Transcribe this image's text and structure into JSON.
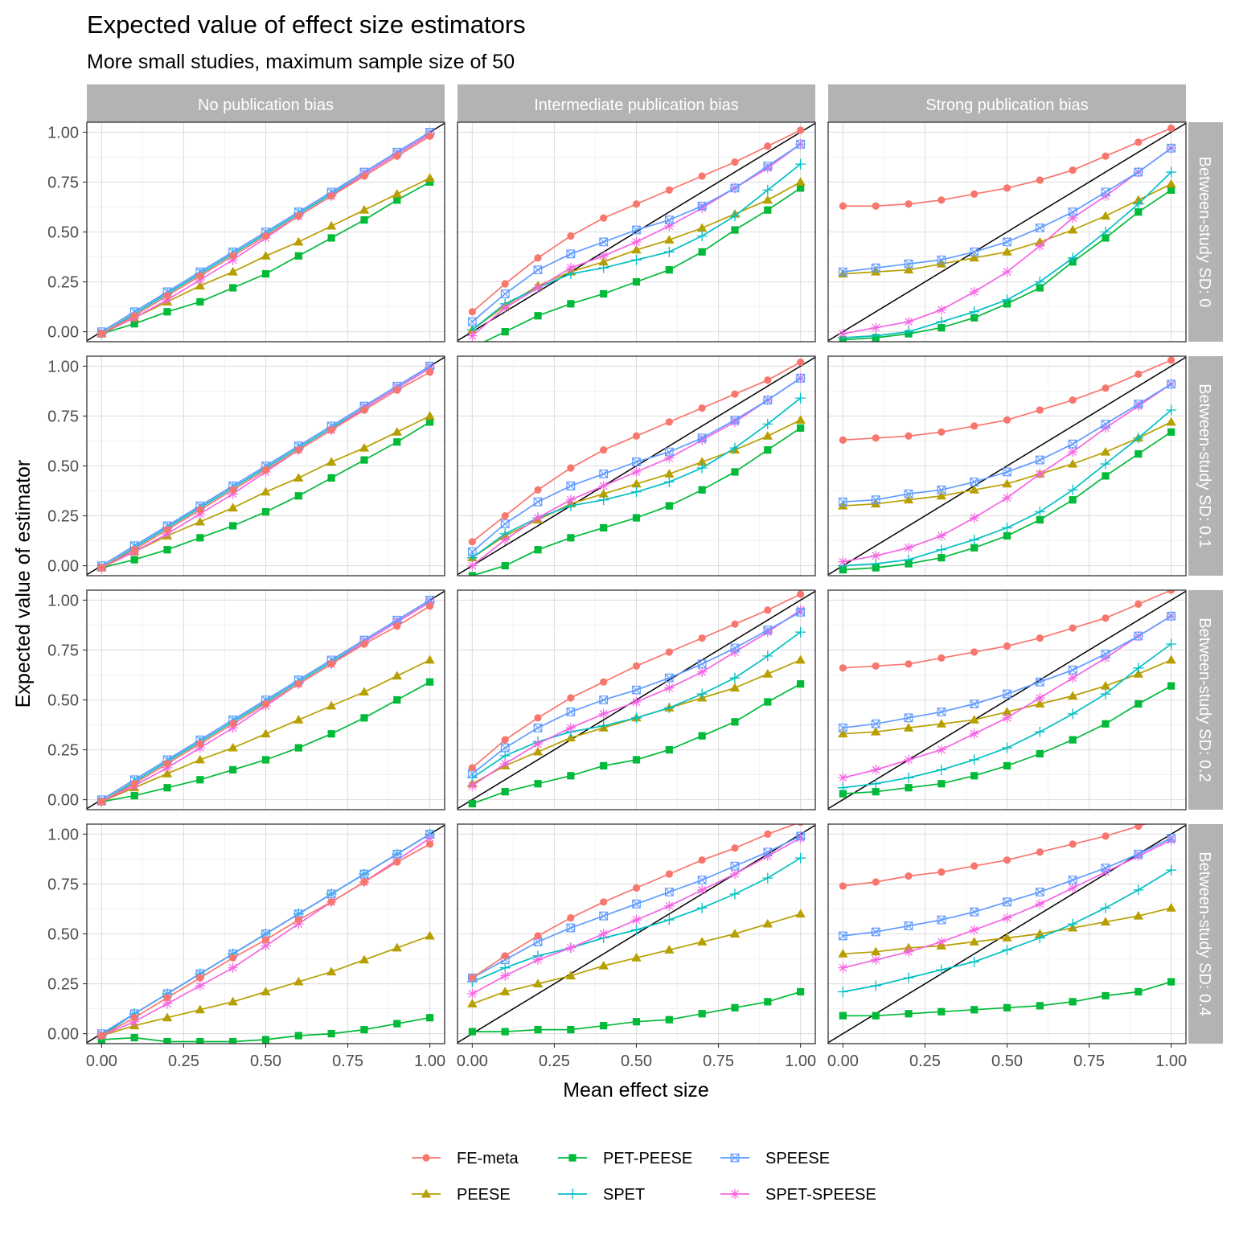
{
  "title": "Expected value of effect size estimators",
  "subtitle": "More small studies, maximum sample size of 50",
  "x_axis_title": "Mean effect size",
  "y_axis_title": "Expected value of estimator",
  "colors": {
    "FE-meta": "#F8766D",
    "PEESE": "#B79F00",
    "PET-PEESE": "#00BA38",
    "SPET": "#00BFC4",
    "SPEESE": "#619CFF",
    "SPET-SPEESE": "#F564E3",
    "strip_bg": "#B3B3B3",
    "reference_line": "#000000"
  },
  "chart_data": {
    "type": "line",
    "facet_columns": [
      "No publication bias",
      "Intermediate publication bias",
      "Strong publication bias"
    ],
    "facet_rows": [
      "Between-study SD: 0",
      "Between-study SD: 0.1",
      "Between-study SD: 0.2",
      "Between-study SD: 0.4"
    ],
    "x": [
      0,
      0.1,
      0.2,
      0.3,
      0.4,
      0.5,
      0.6,
      0.7,
      0.8,
      0.9,
      1.0
    ],
    "x_ticks": [
      "0.00",
      "0.25",
      "0.50",
      "0.75",
      "1.00"
    ],
    "x_tick_values": [
      0,
      0.25,
      0.5,
      0.75,
      1.0
    ],
    "xlim": [
      -0.045,
      1.045
    ],
    "ylim": [
      -0.05,
      1.05
    ],
    "y_ticks": [
      "0.00",
      "0.25",
      "0.50",
      "0.75",
      "1.00"
    ],
    "y_tick_values": [
      0,
      0.25,
      0.5,
      0.75,
      1.0
    ],
    "reference_line": "y = x",
    "grid": true,
    "legend_position": "bottom",
    "legend": [
      {
        "name": "FE-meta",
        "marker": "circle"
      },
      {
        "name": "PET-PEESE",
        "marker": "square"
      },
      {
        "name": "SPEESE",
        "marker": "square-cross"
      },
      {
        "name": "PEESE",
        "marker": "triangle"
      },
      {
        "name": "SPET",
        "marker": "plus"
      },
      {
        "name": "SPET-SPEESE",
        "marker": "asterisk"
      }
    ],
    "panels": [
      {
        "row": 0,
        "col": 0,
        "series": {
          "FE-meta": [
            -0.01,
            0.08,
            0.18,
            0.28,
            0.38,
            0.48,
            0.58,
            0.68,
            0.78,
            0.88,
            0.98
          ],
          "PEESE": [
            -0.01,
            0.07,
            0.15,
            0.23,
            0.3,
            0.38,
            0.45,
            0.53,
            0.61,
            0.69,
            0.77
          ],
          "PET-PEESE": [
            -0.01,
            0.04,
            0.1,
            0.15,
            0.22,
            0.29,
            0.38,
            0.47,
            0.56,
            0.66,
            0.75
          ],
          "SPET": [
            -0.01,
            0.09,
            0.19,
            0.29,
            0.39,
            0.49,
            0.59,
            0.69,
            0.79,
            0.89,
            0.99
          ],
          "SPEESE": [
            0.0,
            0.1,
            0.2,
            0.3,
            0.4,
            0.5,
            0.6,
            0.7,
            0.8,
            0.9,
            1.0
          ],
          "SPET-SPEESE": [
            -0.01,
            0.07,
            0.16,
            0.26,
            0.36,
            0.47,
            0.58,
            0.68,
            0.79,
            0.89,
            0.99
          ]
        }
      },
      {
        "row": 0,
        "col": 1,
        "series": {
          "FE-meta": [
            0.1,
            0.24,
            0.37,
            0.48,
            0.57,
            0.64,
            0.71,
            0.78,
            0.85,
            0.93,
            1.01
          ],
          "PEESE": [
            0.01,
            0.13,
            0.23,
            0.3,
            0.35,
            0.41,
            0.46,
            0.52,
            0.59,
            0.66,
            0.75
          ],
          "PET-PEESE": [
            -0.08,
            0.0,
            0.08,
            0.14,
            0.19,
            0.25,
            0.31,
            0.4,
            0.51,
            0.61,
            0.72
          ],
          "SPET": [
            0.01,
            0.14,
            0.22,
            0.29,
            0.32,
            0.36,
            0.4,
            0.48,
            0.58,
            0.71,
            0.84
          ],
          "SPEESE": [
            0.05,
            0.19,
            0.31,
            0.39,
            0.45,
            0.51,
            0.56,
            0.63,
            0.72,
            0.83,
            0.94
          ],
          "SPET-SPEESE": [
            -0.02,
            0.12,
            0.22,
            0.32,
            0.38,
            0.45,
            0.53,
            0.62,
            0.72,
            0.82,
            0.94
          ]
        }
      },
      {
        "row": 0,
        "col": 2,
        "series": {
          "FE-meta": [
            0.63,
            0.63,
            0.64,
            0.66,
            0.69,
            0.72,
            0.76,
            0.81,
            0.88,
            0.95,
            1.02
          ],
          "PEESE": [
            0.29,
            0.3,
            0.31,
            0.34,
            0.37,
            0.4,
            0.45,
            0.51,
            0.58,
            0.66,
            0.74
          ],
          "PET-PEESE": [
            -0.04,
            -0.03,
            -0.01,
            0.02,
            0.07,
            0.14,
            0.22,
            0.35,
            0.47,
            0.6,
            0.71
          ],
          "SPET": [
            -0.03,
            -0.02,
            0.0,
            0.05,
            0.1,
            0.16,
            0.25,
            0.37,
            0.5,
            0.64,
            0.8
          ],
          "SPEESE": [
            0.3,
            0.32,
            0.34,
            0.36,
            0.4,
            0.45,
            0.52,
            0.6,
            0.7,
            0.8,
            0.92
          ],
          "SPET-SPEESE": [
            -0.01,
            0.02,
            0.05,
            0.11,
            0.2,
            0.3,
            0.43,
            0.57,
            0.68,
            0.8,
            0.92
          ]
        }
      },
      {
        "row": 1,
        "col": 0,
        "series": {
          "FE-meta": [
            -0.01,
            0.08,
            0.18,
            0.28,
            0.38,
            0.48,
            0.58,
            0.68,
            0.78,
            0.88,
            0.97
          ],
          "PEESE": [
            -0.01,
            0.07,
            0.15,
            0.22,
            0.29,
            0.37,
            0.44,
            0.52,
            0.59,
            0.67,
            0.75
          ],
          "PET-PEESE": [
            -0.01,
            0.03,
            0.08,
            0.14,
            0.2,
            0.27,
            0.35,
            0.44,
            0.53,
            0.62,
            0.72
          ],
          "SPET": [
            -0.01,
            0.09,
            0.19,
            0.29,
            0.39,
            0.49,
            0.59,
            0.69,
            0.79,
            0.89,
            0.99
          ],
          "SPEESE": [
            0.0,
            0.1,
            0.2,
            0.3,
            0.4,
            0.5,
            0.6,
            0.7,
            0.8,
            0.9,
            1.0
          ],
          "SPET-SPEESE": [
            -0.01,
            0.07,
            0.16,
            0.26,
            0.36,
            0.47,
            0.58,
            0.68,
            0.79,
            0.89,
            0.99
          ]
        }
      },
      {
        "row": 1,
        "col": 1,
        "series": {
          "FE-meta": [
            0.12,
            0.25,
            0.38,
            0.49,
            0.58,
            0.65,
            0.72,
            0.79,
            0.86,
            0.93,
            1.02
          ],
          "PEESE": [
            0.04,
            0.15,
            0.23,
            0.31,
            0.36,
            0.41,
            0.46,
            0.52,
            0.58,
            0.65,
            0.73
          ],
          "PET-PEESE": [
            -0.05,
            0.0,
            0.08,
            0.14,
            0.19,
            0.24,
            0.3,
            0.38,
            0.47,
            0.58,
            0.69
          ],
          "SPET": [
            0.04,
            0.16,
            0.24,
            0.3,
            0.33,
            0.37,
            0.42,
            0.49,
            0.59,
            0.71,
            0.84
          ],
          "SPEESE": [
            0.07,
            0.21,
            0.32,
            0.4,
            0.46,
            0.52,
            0.57,
            0.64,
            0.73,
            0.83,
            0.94
          ],
          "SPET-SPEESE": [
            0.0,
            0.13,
            0.24,
            0.33,
            0.4,
            0.47,
            0.54,
            0.63,
            0.72,
            0.83,
            0.94
          ]
        }
      },
      {
        "row": 1,
        "col": 2,
        "series": {
          "FE-meta": [
            0.63,
            0.64,
            0.65,
            0.67,
            0.7,
            0.73,
            0.78,
            0.83,
            0.89,
            0.96,
            1.03
          ],
          "PEESE": [
            0.3,
            0.31,
            0.33,
            0.35,
            0.38,
            0.41,
            0.46,
            0.51,
            0.57,
            0.64,
            0.72
          ],
          "PET-PEESE": [
            -0.02,
            -0.01,
            0.01,
            0.04,
            0.09,
            0.15,
            0.23,
            0.33,
            0.45,
            0.56,
            0.67
          ],
          "SPET": [
            0.0,
            0.01,
            0.03,
            0.08,
            0.13,
            0.19,
            0.27,
            0.38,
            0.51,
            0.64,
            0.78
          ],
          "SPEESE": [
            0.32,
            0.33,
            0.36,
            0.38,
            0.42,
            0.47,
            0.53,
            0.61,
            0.71,
            0.81,
            0.91
          ],
          "SPET-SPEESE": [
            0.02,
            0.05,
            0.09,
            0.15,
            0.24,
            0.34,
            0.46,
            0.57,
            0.69,
            0.8,
            0.91
          ]
        }
      },
      {
        "row": 2,
        "col": 0,
        "series": {
          "FE-meta": [
            -0.01,
            0.08,
            0.18,
            0.28,
            0.38,
            0.48,
            0.58,
            0.68,
            0.78,
            0.87,
            0.97
          ],
          "PEESE": [
            -0.01,
            0.06,
            0.13,
            0.2,
            0.26,
            0.33,
            0.4,
            0.47,
            0.54,
            0.62,
            0.7
          ],
          "PET-PEESE": [
            -0.01,
            0.02,
            0.06,
            0.1,
            0.15,
            0.2,
            0.26,
            0.33,
            0.41,
            0.5,
            0.59
          ],
          "SPET": [
            -0.01,
            0.09,
            0.19,
            0.29,
            0.39,
            0.49,
            0.59,
            0.69,
            0.79,
            0.89,
            0.99
          ],
          "SPEESE": [
            0.0,
            0.1,
            0.2,
            0.3,
            0.4,
            0.5,
            0.6,
            0.7,
            0.8,
            0.9,
            1.0
          ],
          "SPET-SPEESE": [
            -0.01,
            0.07,
            0.16,
            0.26,
            0.36,
            0.47,
            0.58,
            0.68,
            0.79,
            0.89,
            0.99
          ]
        }
      },
      {
        "row": 2,
        "col": 1,
        "series": {
          "FE-meta": [
            0.16,
            0.3,
            0.41,
            0.51,
            0.59,
            0.67,
            0.74,
            0.81,
            0.88,
            0.95,
            1.03
          ],
          "PEESE": [
            0.08,
            0.17,
            0.24,
            0.31,
            0.36,
            0.41,
            0.46,
            0.51,
            0.56,
            0.63,
            0.7
          ],
          "PET-PEESE": [
            -0.02,
            0.04,
            0.08,
            0.12,
            0.17,
            0.2,
            0.25,
            0.32,
            0.39,
            0.49,
            0.58
          ],
          "SPET": [
            0.11,
            0.22,
            0.29,
            0.34,
            0.37,
            0.41,
            0.46,
            0.53,
            0.61,
            0.72,
            0.84
          ],
          "SPEESE": [
            0.13,
            0.26,
            0.36,
            0.44,
            0.5,
            0.55,
            0.61,
            0.68,
            0.76,
            0.85,
            0.94
          ],
          "SPET-SPEESE": [
            0.07,
            0.18,
            0.28,
            0.36,
            0.43,
            0.49,
            0.56,
            0.64,
            0.74,
            0.84,
            0.95
          ]
        }
      },
      {
        "row": 2,
        "col": 2,
        "series": {
          "FE-meta": [
            0.66,
            0.67,
            0.68,
            0.71,
            0.74,
            0.77,
            0.81,
            0.86,
            0.91,
            0.98,
            1.05
          ],
          "PEESE": [
            0.33,
            0.34,
            0.36,
            0.38,
            0.4,
            0.44,
            0.48,
            0.52,
            0.57,
            0.63,
            0.7
          ],
          "PET-PEESE": [
            0.03,
            0.04,
            0.06,
            0.08,
            0.12,
            0.17,
            0.23,
            0.3,
            0.38,
            0.48,
            0.57
          ],
          "SPET": [
            0.06,
            0.08,
            0.11,
            0.15,
            0.2,
            0.26,
            0.34,
            0.43,
            0.53,
            0.66,
            0.78
          ],
          "SPEESE": [
            0.36,
            0.38,
            0.41,
            0.44,
            0.48,
            0.53,
            0.59,
            0.65,
            0.73,
            0.82,
            0.92
          ],
          "SPET-SPEESE": [
            0.11,
            0.15,
            0.2,
            0.25,
            0.33,
            0.41,
            0.51,
            0.61,
            0.71,
            0.82,
            0.92
          ]
        }
      },
      {
        "row": 3,
        "col": 0,
        "series": {
          "FE-meta": [
            -0.01,
            0.08,
            0.18,
            0.28,
            0.38,
            0.47,
            0.57,
            0.66,
            0.76,
            0.86,
            0.95
          ],
          "PEESE": [
            -0.01,
            0.04,
            0.08,
            0.12,
            0.16,
            0.21,
            0.26,
            0.31,
            0.37,
            0.43,
            0.49
          ],
          "PET-PEESE": [
            -0.03,
            -0.02,
            -0.04,
            -0.04,
            -0.04,
            -0.03,
            -0.01,
            0.0,
            0.02,
            0.05,
            0.08
          ],
          "SPET": [
            -0.01,
            0.1,
            0.2,
            0.3,
            0.4,
            0.5,
            0.6,
            0.7,
            0.8,
            0.9,
            1.0
          ],
          "SPEESE": [
            0.0,
            0.1,
            0.2,
            0.3,
            0.4,
            0.5,
            0.6,
            0.7,
            0.8,
            0.9,
            1.0
          ],
          "SPET-SPEESE": [
            -0.01,
            0.06,
            0.15,
            0.24,
            0.33,
            0.44,
            0.55,
            0.66,
            0.76,
            0.87,
            0.98
          ]
        }
      },
      {
        "row": 3,
        "col": 1,
        "series": {
          "FE-meta": [
            0.28,
            0.39,
            0.49,
            0.58,
            0.66,
            0.73,
            0.8,
            0.87,
            0.93,
            1.0,
            1.06
          ],
          "PEESE": [
            0.15,
            0.21,
            0.25,
            0.29,
            0.34,
            0.38,
            0.42,
            0.46,
            0.5,
            0.55,
            0.6
          ],
          "PET-PEESE": [
            0.01,
            0.01,
            0.02,
            0.02,
            0.04,
            0.06,
            0.07,
            0.1,
            0.13,
            0.16,
            0.21
          ],
          "SPET": [
            0.26,
            0.33,
            0.39,
            0.43,
            0.48,
            0.52,
            0.57,
            0.63,
            0.7,
            0.78,
            0.88
          ],
          "SPEESE": [
            0.28,
            0.37,
            0.46,
            0.53,
            0.59,
            0.65,
            0.71,
            0.77,
            0.84,
            0.91,
            0.99
          ],
          "SPET-SPEESE": [
            0.2,
            0.29,
            0.37,
            0.43,
            0.5,
            0.57,
            0.64,
            0.72,
            0.8,
            0.89,
            0.98
          ]
        }
      },
      {
        "row": 3,
        "col": 2,
        "series": {
          "FE-meta": [
            0.74,
            0.76,
            0.79,
            0.81,
            0.84,
            0.87,
            0.91,
            0.95,
            0.99,
            1.04,
            1.09
          ],
          "PEESE": [
            0.4,
            0.41,
            0.43,
            0.44,
            0.46,
            0.48,
            0.5,
            0.53,
            0.56,
            0.59,
            0.63
          ],
          "PET-PEESE": [
            0.09,
            0.09,
            0.1,
            0.11,
            0.12,
            0.13,
            0.14,
            0.16,
            0.19,
            0.21,
            0.26
          ],
          "SPET": [
            0.21,
            0.24,
            0.28,
            0.32,
            0.36,
            0.42,
            0.48,
            0.55,
            0.63,
            0.72,
            0.82
          ],
          "SPEESE": [
            0.49,
            0.51,
            0.54,
            0.57,
            0.61,
            0.66,
            0.71,
            0.77,
            0.83,
            0.9,
            0.98
          ],
          "SPET-SPEESE": [
            0.33,
            0.37,
            0.41,
            0.46,
            0.52,
            0.58,
            0.65,
            0.73,
            0.81,
            0.89,
            0.97
          ]
        }
      }
    ]
  }
}
